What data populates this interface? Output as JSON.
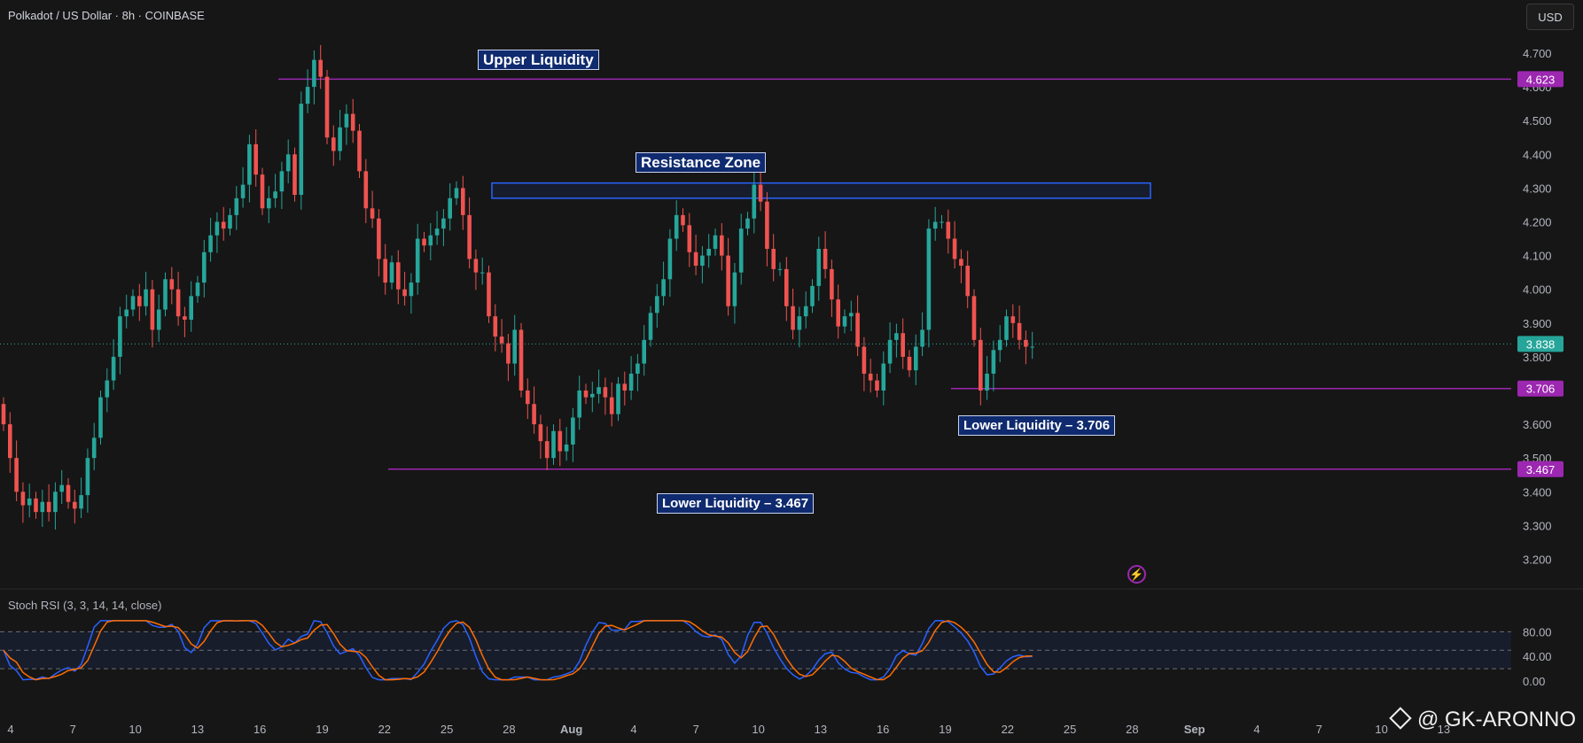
{
  "header": {
    "title": "Polkadot / US Dollar · 8h · COINBASE",
    "currency": "USD"
  },
  "colors": {
    "background": "#161616",
    "up": "#26a69a",
    "down": "#ef5350",
    "liquidity_line": "#9c27b0",
    "resistance_box": "#2962ff",
    "annotation_bg": "#0f2a6e",
    "stoch_k": "#2962ff",
    "stoch_d": "#ff6d00"
  },
  "annotations": {
    "upper_liquidity": "Upper Liquidity",
    "resistance_zone": "Resistance Zone",
    "lower_liquidity_1": "Lower Liquidity – 3.706",
    "lower_liquidity_2": "Lower Liquidity – 3.467"
  },
  "stoch_rsi": {
    "label": "Stoch RSI (3, 3, 14, 14, close)",
    "ticks": [
      "80.00",
      "40.00",
      "0.00"
    ],
    "levels": [
      80,
      50,
      20
    ]
  },
  "watermark": "@ GK-ARONNO",
  "chart_data": {
    "type": "candlestick",
    "title": "Polkadot / US Dollar · 8h · COINBASE",
    "interval": "8h",
    "y_ticks": [
      4.7,
      4.6,
      4.5,
      4.4,
      4.3,
      4.2,
      4.1,
      4.0,
      3.9,
      3.8,
      3.7,
      3.6,
      3.5,
      3.4,
      3.3,
      3.2
    ],
    "x_ticks": [
      "4",
      "7",
      "10",
      "13",
      "16",
      "19",
      "22",
      "25",
      "28",
      "Aug",
      "4",
      "7",
      "10",
      "13",
      "16",
      "19",
      "22",
      "25",
      "28",
      "Sep",
      "4",
      "7",
      "10",
      "13"
    ],
    "ylim": [
      3.12,
      4.77
    ],
    "current_price": 3.838,
    "price_labels": [
      4.623,
      3.838,
      3.706,
      3.467
    ],
    "levels": {
      "upper_liquidity": 4.623,
      "lower_liquidity_1": 3.706,
      "lower_liquidity_2": 3.467
    },
    "resistance_zone": [
      4.27,
      4.315
    ],
    "closes": [
      3.6,
      3.5,
      3.4,
      3.36,
      3.38,
      3.34,
      3.37,
      3.34,
      3.4,
      3.42,
      3.37,
      3.35,
      3.39,
      3.5,
      3.56,
      3.68,
      3.73,
      3.8,
      3.92,
      3.94,
      3.98,
      3.95,
      4.0,
      3.88,
      3.94,
      4.03,
      4.0,
      3.92,
      3.91,
      3.98,
      4.02,
      4.11,
      4.16,
      4.2,
      4.18,
      4.22,
      4.27,
      4.31,
      4.43,
      4.34,
      4.24,
      4.27,
      4.29,
      4.35,
      4.4,
      4.28,
      4.55,
      4.6,
      4.68,
      4.63,
      4.45,
      4.41,
      4.48,
      4.52,
      4.47,
      4.35,
      4.24,
      4.21,
      4.09,
      4.02,
      4.08,
      4.0,
      3.98,
      4.02,
      4.15,
      4.13,
      4.16,
      4.18,
      4.21,
      4.27,
      4.3,
      4.22,
      4.09,
      4.05,
      4.05,
      3.92,
      3.86,
      3.84,
      3.78,
      3.88,
      3.7,
      3.66,
      3.6,
      3.55,
      3.5,
      3.58,
      3.52,
      3.54,
      3.62,
      3.7,
      3.68,
      3.69,
      3.71,
      3.68,
      3.63,
      3.72,
      3.7,
      3.75,
      3.78,
      3.85,
      3.93,
      3.98,
      4.03,
      4.15,
      4.22,
      4.19,
      4.11,
      4.07,
      4.1,
      4.12,
      4.16,
      4.1,
      3.95,
      4.05,
      4.18,
      4.21,
      4.31,
      4.26,
      4.12,
      4.06,
      4.06,
      3.95,
      3.88,
      3.92,
      3.95,
      4.01,
      4.12,
      4.06,
      3.97,
      3.89,
      3.92,
      3.93,
      3.83,
      3.75,
      3.73,
      3.7,
      3.78,
      3.85,
      3.87,
      3.8,
      3.76,
      3.83,
      3.88,
      4.18,
      4.2,
      4.2,
      4.15,
      4.09,
      4.07,
      3.98,
      3.85,
      3.7,
      3.75,
      3.82,
      3.85,
      3.92,
      3.9,
      3.85,
      3.83,
      3.83
    ]
  }
}
